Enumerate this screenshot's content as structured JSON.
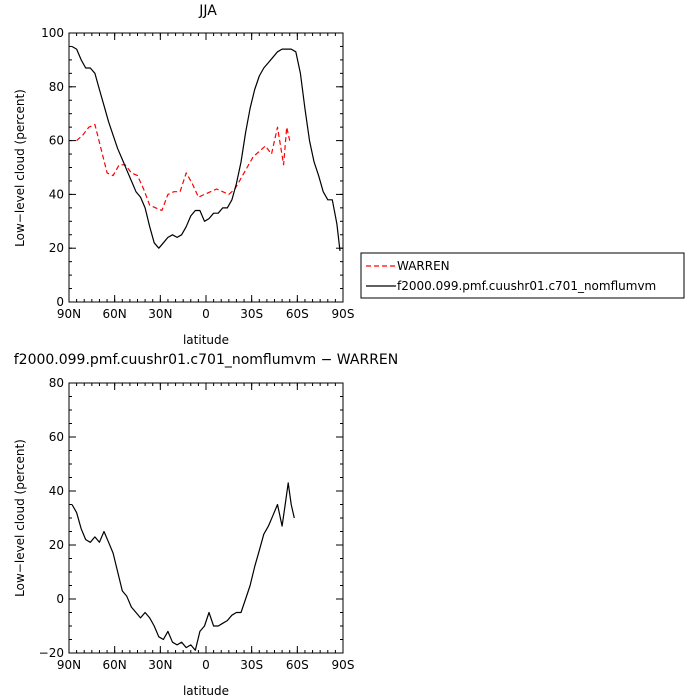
{
  "chart_data": [
    {
      "type": "line",
      "title": "JJA",
      "xlabel": "latitude",
      "ylabel": "Low−level cloud (percent)",
      "xlim": [
        90,
        -90
      ],
      "ylim": [
        0,
        100
      ],
      "x_ticks": [
        90,
        60,
        30,
        0,
        -30,
        -60,
        -90
      ],
      "x_tick_labels": [
        "90N",
        "60N",
        "30N",
        "0",
        "30S",
        "60S",
        "90S"
      ],
      "y_ticks": [
        0,
        20,
        40,
        60,
        80,
        100
      ],
      "y_tick_labels": [
        "0",
        "20",
        "40",
        "60",
        "80",
        "100"
      ],
      "legend_position": "right",
      "series": [
        {
          "name": "WARREN",
          "color": "#ff0000",
          "dash": "dashed",
          "x": [
            85,
            81,
            77,
            73,
            69,
            65,
            61,
            57,
            53,
            49,
            45,
            41,
            37,
            33,
            29,
            25,
            21,
            17,
            13,
            9,
            5,
            1,
            -3,
            -7,
            -11,
            -15,
            -19,
            -23,
            -27,
            -31,
            -35,
            -39,
            -43,
            -47,
            -51,
            -53,
            -55
          ],
          "y": [
            60,
            62,
            65,
            66,
            57,
            48,
            47,
            51,
            51,
            48,
            47,
            42,
            36,
            35,
            34,
            40,
            41,
            41,
            48,
            44,
            39,
            40,
            41,
            42,
            41,
            40,
            42,
            46,
            50,
            54,
            56,
            58,
            55,
            65,
            51,
            65,
            60
          ]
        },
        {
          "name": "f2000.099.pmf.cuushr01.c701_nomflumvm",
          "color": "#000000",
          "dash": "solid",
          "x": [
            88,
            85,
            82,
            79,
            76,
            73,
            70,
            67,
            64,
            61,
            58,
            55,
            52,
            49,
            46,
            43,
            40,
            37,
            34,
            31,
            28,
            25,
            22,
            19,
            16,
            13,
            10,
            7,
            4,
            1,
            -2,
            -5,
            -8,
            -11,
            -14,
            -17,
            -20,
            -23,
            -26,
            -29,
            -32,
            -35,
            -38,
            -41,
            -44,
            -47,
            -50,
            -53,
            -56,
            -59,
            -62,
            -65,
            -68,
            -71,
            -74,
            -77,
            -80,
            -83,
            -86,
            -88
          ],
          "y": [
            95,
            94,
            90,
            87,
            87,
            85,
            79,
            73,
            67,
            62,
            57,
            53,
            49,
            45,
            41,
            39,
            35,
            28,
            22,
            20,
            22,
            24,
            25,
            24,
            25,
            28,
            32,
            34,
            34,
            30,
            31,
            33,
            33,
            35,
            35,
            38,
            44,
            52,
            63,
            72,
            79,
            84,
            87,
            89,
            91,
            93,
            94,
            94,
            94,
            93,
            85,
            72,
            60,
            52,
            47,
            41,
            38,
            38,
            29,
            19
          ]
        }
      ]
    },
    {
      "type": "line",
      "title": "f2000.099.pmf.cuushr01.c701_nomflumvm − WARREN",
      "xlabel": "latitude",
      "ylabel": "Low−level cloud (percent)",
      "xlim": [
        90,
        -90
      ],
      "ylim": [
        -20,
        80
      ],
      "x_ticks": [
        90,
        60,
        30,
        0,
        -30,
        -60,
        -90
      ],
      "x_tick_labels": [
        "90N",
        "60N",
        "30N",
        "0",
        "30S",
        "60S",
        "90S"
      ],
      "y_ticks": [
        -20,
        0,
        20,
        40,
        60,
        80
      ],
      "y_tick_labels": [
        "−20",
        "0",
        "20",
        "40",
        "60",
        "80"
      ],
      "series": [
        {
          "color": "#000000",
          "dash": "solid",
          "x": [
            88,
            85,
            82,
            79,
            76,
            73,
            70,
            67,
            64,
            61,
            58,
            55,
            52,
            49,
            46,
            43,
            40,
            37,
            34,
            31,
            28,
            25,
            22,
            19,
            16,
            13,
            10,
            7,
            4,
            1,
            -2,
            -5,
            -8,
            -11,
            -14,
            -17,
            -20,
            -23,
            -26,
            -29,
            -32,
            -35,
            -38,
            -41,
            -44,
            -47,
            -50,
            -52,
            -54,
            -56,
            -58
          ],
          "y": [
            35,
            32,
            26,
            22,
            21,
            23,
            21,
            25,
            21,
            17,
            10,
            3,
            1,
            -3,
            -5,
            -7,
            -5,
            -7,
            -10,
            -14,
            -15,
            -12,
            -16,
            -17,
            -16,
            -18,
            -17,
            -19,
            -12,
            -10,
            -5,
            -10,
            -10,
            -9,
            -8,
            -6,
            -5,
            -5,
            0,
            5,
            12,
            18,
            24,
            27,
            31,
            35,
            27,
            35,
            43,
            35,
            30
          ]
        }
      ]
    }
  ]
}
